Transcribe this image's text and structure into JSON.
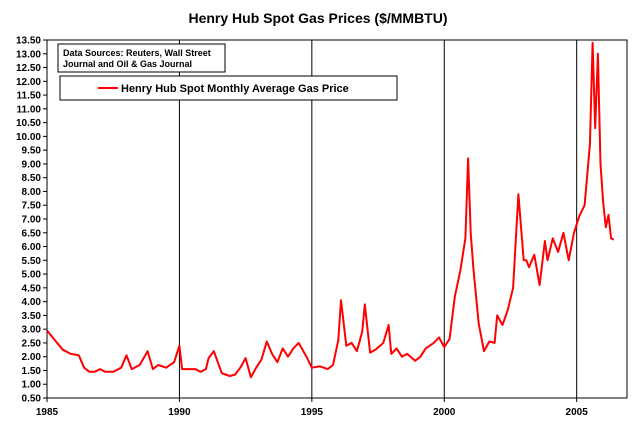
{
  "chart_data": {
    "type": "line",
    "title": "Henry Hub Spot Gas Prices ($/MMBTU)",
    "xlabel": "",
    "ylabel": "",
    "xlim": [
      1985,
      2006.9
    ],
    "ylim": [
      0.5,
      13.5
    ],
    "y_ticks": [
      "13.50",
      "13.00",
      "12.50",
      "12.00",
      "11.50",
      "11.00",
      "10.50",
      "10.00",
      "9.50",
      "9.00",
      "8.50",
      "8.00",
      "7.50",
      "7.00",
      "6.50",
      "6.00",
      "5.50",
      "5.00",
      "4.50",
      "4.00",
      "3.50",
      "3.00",
      "2.50",
      "2.00",
      "1.50",
      "1.00",
      "0.50"
    ],
    "x_ticks": [
      "1985",
      "1990",
      "1995",
      "2000",
      "2005"
    ],
    "vertical_grid_at": [
      1990,
      1995,
      2000,
      2005
    ],
    "annotation": [
      "Data Sources:  Reuters, Wall Street",
      "Journal and Oil & Gas Journal"
    ],
    "legend_position": "top-left",
    "series": [
      {
        "name": "Henry Hub Spot Monthly Average Gas Price",
        "color": "#ff0000",
        "x": [
          1985.0,
          1985.3,
          1985.6,
          1985.9,
          1986.2,
          1986.4,
          1986.6,
          1986.8,
          1987.0,
          1987.2,
          1987.5,
          1987.8,
          1988.0,
          1988.2,
          1988.5,
          1988.8,
          1989.0,
          1989.2,
          1989.5,
          1989.8,
          1990.0,
          1990.1,
          1990.3,
          1990.6,
          1990.8,
          1991.0,
          1991.1,
          1991.3,
          1991.6,
          1991.9,
          1992.1,
          1992.3,
          1992.5,
          1992.7,
          1992.9,
          1993.1,
          1993.3,
          1993.5,
          1993.7,
          1993.9,
          1994.1,
          1994.3,
          1994.5,
          1994.8,
          1995.0,
          1995.3,
          1995.6,
          1995.8,
          1996.0,
          1996.1,
          1996.3,
          1996.5,
          1996.7,
          1996.9,
          1997.0,
          1997.2,
          1997.4,
          1997.7,
          1997.9,
          1998.0,
          1998.2,
          1998.4,
          1998.6,
          1998.9,
          1999.1,
          1999.3,
          1999.6,
          1999.8,
          2000.0,
          2000.2,
          2000.4,
          2000.6,
          2000.8,
          2000.9,
          2001.0,
          2001.1,
          2001.3,
          2001.5,
          2001.7,
          2001.9,
          2002.0,
          2002.2,
          2002.4,
          2002.6,
          2002.8,
          2003.0,
          2003.1,
          2003.2,
          2003.4,
          2003.6,
          2003.8,
          2003.9,
          2004.1,
          2004.3,
          2004.5,
          2004.7,
          2004.9,
          2005.1,
          2005.3,
          2005.5,
          2005.6,
          2005.7,
          2005.8,
          2005.9,
          2006.0,
          2006.1,
          2006.2,
          2006.3,
          2006.4
        ],
        "values": [
          2.95,
          2.6,
          2.25,
          2.1,
          2.05,
          1.6,
          1.45,
          1.45,
          1.55,
          1.45,
          1.45,
          1.6,
          2.05,
          1.55,
          1.7,
          2.2,
          1.55,
          1.7,
          1.6,
          1.8,
          2.4,
          1.55,
          1.55,
          1.55,
          1.45,
          1.55,
          1.95,
          2.2,
          1.4,
          1.3,
          1.35,
          1.6,
          1.95,
          1.25,
          1.6,
          1.9,
          2.55,
          2.1,
          1.8,
          2.3,
          2.0,
          2.3,
          2.5,
          2.0,
          1.6,
          1.65,
          1.55,
          1.7,
          2.6,
          4.05,
          2.4,
          2.5,
          2.2,
          2.9,
          3.9,
          2.15,
          2.25,
          2.5,
          3.15,
          2.1,
          2.3,
          2.0,
          2.1,
          1.85,
          2.0,
          2.3,
          2.5,
          2.7,
          2.35,
          2.65,
          4.2,
          5.1,
          6.3,
          9.2,
          6.5,
          5.2,
          3.2,
          2.2,
          2.55,
          2.5,
          3.5,
          3.15,
          3.7,
          4.5,
          7.9,
          5.5,
          5.5,
          5.25,
          5.7,
          4.6,
          6.2,
          5.5,
          6.3,
          5.8,
          6.5,
          5.5,
          6.5,
          7.1,
          7.5,
          9.7,
          13.4,
          10.3,
          13.0,
          9.0,
          7.6,
          6.7,
          7.15,
          6.3,
          6.25
        ]
      }
    ]
  }
}
